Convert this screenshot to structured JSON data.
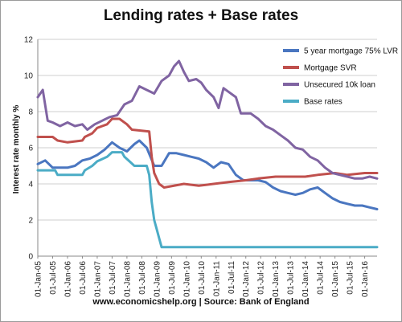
{
  "chart_data": {
    "type": "line",
    "title": "Lending rates + Base rates",
    "source": "www.economicshelp.org | Source: Bank of England",
    "ylabel": "Interest rate monthly %",
    "xlabel": "",
    "ylim": [
      0,
      12
    ],
    "yticks": [
      "0",
      "2",
      "4",
      "6",
      "8",
      "10",
      "12"
    ],
    "xlim": [
      "2005-01",
      "2016-06"
    ],
    "xticks": [
      "01-Jan-05",
      "01-Jul-05",
      "01-Jan-06",
      "01-Jul-06",
      "01-Jan-07",
      "01-Jul-07",
      "01-Jan-08",
      "01-Jul-08",
      "01-Jan-09",
      "01-Jul-09",
      "01-Jan-10",
      "01-Jul-10",
      "01-Jan-11",
      "01-Jul-11",
      "01-Jan-12",
      "01-Jul-12",
      "01-Jan-13",
      "01-Jul-13",
      "01-Jan-14",
      "01-Jul-14",
      "01-Jan-15",
      "01-Jul-15",
      "01-Jan-16"
    ],
    "grid": "horizontal",
    "legend": "top-right",
    "series": [
      {
        "name": "5 year mortgage 75% LVR",
        "color": "#4a76c0",
        "points": [
          [
            "2005-01",
            5.1
          ],
          [
            "2005-04",
            5.3
          ],
          [
            "2005-07",
            4.9
          ],
          [
            "2005-10",
            4.9
          ],
          [
            "2006-01",
            4.9
          ],
          [
            "2006-04",
            5.0
          ],
          [
            "2006-07",
            5.3
          ],
          [
            "2006-10",
            5.4
          ],
          [
            "2007-01",
            5.6
          ],
          [
            "2007-04",
            5.9
          ],
          [
            "2007-07",
            6.3
          ],
          [
            "2007-10",
            6.0
          ],
          [
            "2008-01",
            5.8
          ],
          [
            "2008-04",
            6.2
          ],
          [
            "2008-06",
            6.4
          ],
          [
            "2008-09",
            6.0
          ],
          [
            "2008-12",
            5.0
          ],
          [
            "2009-03",
            5.0
          ],
          [
            "2009-06",
            5.7
          ],
          [
            "2009-09",
            5.7
          ],
          [
            "2009-12",
            5.6
          ],
          [
            "2010-03",
            5.5
          ],
          [
            "2010-06",
            5.4
          ],
          [
            "2010-09",
            5.2
          ],
          [
            "2010-12",
            4.9
          ],
          [
            "2011-03",
            5.2
          ],
          [
            "2011-06",
            5.1
          ],
          [
            "2011-09",
            4.5
          ],
          [
            "2011-12",
            4.2
          ],
          [
            "2012-03",
            4.2
          ],
          [
            "2012-06",
            4.2
          ],
          [
            "2012-09",
            4.1
          ],
          [
            "2012-12",
            3.8
          ],
          [
            "2013-03",
            3.6
          ],
          [
            "2013-06",
            3.5
          ],
          [
            "2013-09",
            3.4
          ],
          [
            "2013-12",
            3.5
          ],
          [
            "2014-03",
            3.7
          ],
          [
            "2014-06",
            3.8
          ],
          [
            "2014-09",
            3.5
          ],
          [
            "2014-12",
            3.2
          ],
          [
            "2015-03",
            3.0
          ],
          [
            "2015-06",
            2.9
          ],
          [
            "2015-09",
            2.8
          ],
          [
            "2015-12",
            2.8
          ],
          [
            "2016-03",
            2.7
          ],
          [
            "2016-06",
            2.6
          ]
        ]
      },
      {
        "name": "Mortgage SVR",
        "color": "#c0504d",
        "points": [
          [
            "2005-01",
            6.6
          ],
          [
            "2005-07",
            6.6
          ],
          [
            "2005-09",
            6.4
          ],
          [
            "2006-01",
            6.3
          ],
          [
            "2006-07",
            6.4
          ],
          [
            "2006-08",
            6.6
          ],
          [
            "2006-11",
            6.8
          ],
          [
            "2007-01",
            7.1
          ],
          [
            "2007-05",
            7.3
          ],
          [
            "2007-07",
            7.6
          ],
          [
            "2007-10",
            7.6
          ],
          [
            "2008-01",
            7.3
          ],
          [
            "2008-03",
            7.0
          ],
          [
            "2008-10",
            6.9
          ],
          [
            "2008-11",
            5.5
          ],
          [
            "2008-12",
            4.6
          ],
          [
            "2009-02",
            4.0
          ],
          [
            "2009-04",
            3.8
          ],
          [
            "2009-12",
            4.0
          ],
          [
            "2010-06",
            3.9
          ],
          [
            "2010-12",
            4.0
          ],
          [
            "2011-06",
            4.1
          ],
          [
            "2012-01",
            4.2
          ],
          [
            "2012-06",
            4.3
          ],
          [
            "2013-01",
            4.4
          ],
          [
            "2013-06",
            4.4
          ],
          [
            "2014-01",
            4.4
          ],
          [
            "2014-06",
            4.5
          ],
          [
            "2015-01",
            4.6
          ],
          [
            "2015-06",
            4.5
          ],
          [
            "2016-01",
            4.6
          ],
          [
            "2016-06",
            4.6
          ]
        ]
      },
      {
        "name": "Unsecured 10k loan",
        "color": "#8064a2",
        "points": [
          [
            "2005-01",
            8.8
          ],
          [
            "2005-03",
            9.2
          ],
          [
            "2005-05",
            7.5
          ],
          [
            "2005-07",
            7.4
          ],
          [
            "2005-10",
            7.2
          ],
          [
            "2006-01",
            7.4
          ],
          [
            "2006-04",
            7.2
          ],
          [
            "2006-07",
            7.3
          ],
          [
            "2006-09",
            7.0
          ],
          [
            "2006-12",
            7.3
          ],
          [
            "2007-03",
            7.5
          ],
          [
            "2007-06",
            7.7
          ],
          [
            "2007-09",
            7.8
          ],
          [
            "2007-12",
            8.4
          ],
          [
            "2008-03",
            8.6
          ],
          [
            "2008-06",
            9.4
          ],
          [
            "2008-09",
            9.2
          ],
          [
            "2008-12",
            9.0
          ],
          [
            "2009-03",
            9.7
          ],
          [
            "2009-06",
            10.0
          ],
          [
            "2009-08",
            10.5
          ],
          [
            "2009-10",
            10.8
          ],
          [
            "2009-12",
            10.2
          ],
          [
            "2010-02",
            9.7
          ],
          [
            "2010-05",
            9.8
          ],
          [
            "2010-07",
            9.6
          ],
          [
            "2010-09",
            9.2
          ],
          [
            "2010-12",
            8.8
          ],
          [
            "2011-02",
            8.2
          ],
          [
            "2011-04",
            9.3
          ],
          [
            "2011-06",
            9.1
          ],
          [
            "2011-09",
            8.8
          ],
          [
            "2011-11",
            7.9
          ],
          [
            "2012-03",
            7.9
          ],
          [
            "2012-06",
            7.6
          ],
          [
            "2012-09",
            7.2
          ],
          [
            "2012-12",
            7.0
          ],
          [
            "2013-03",
            6.7
          ],
          [
            "2013-06",
            6.4
          ],
          [
            "2013-09",
            6.0
          ],
          [
            "2013-12",
            5.9
          ],
          [
            "2014-03",
            5.5
          ],
          [
            "2014-06",
            5.3
          ],
          [
            "2014-09",
            4.9
          ],
          [
            "2014-12",
            4.6
          ],
          [
            "2015-03",
            4.5
          ],
          [
            "2015-06",
            4.4
          ],
          [
            "2015-09",
            4.3
          ],
          [
            "2015-12",
            4.3
          ],
          [
            "2016-03",
            4.4
          ],
          [
            "2016-06",
            4.3
          ]
        ]
      },
      {
        "name": "Base rates",
        "color": "#4bacc6",
        "points": [
          [
            "2005-01",
            4.75
          ],
          [
            "2005-08",
            4.75
          ],
          [
            "2005-09",
            4.5
          ],
          [
            "2006-07",
            4.5
          ],
          [
            "2006-08",
            4.75
          ],
          [
            "2006-11",
            5.0
          ],
          [
            "2007-01",
            5.25
          ],
          [
            "2007-05",
            5.5
          ],
          [
            "2007-07",
            5.75
          ],
          [
            "2007-11",
            5.75
          ],
          [
            "2007-12",
            5.5
          ],
          [
            "2008-02",
            5.25
          ],
          [
            "2008-04",
            5.0
          ],
          [
            "2008-09",
            5.0
          ],
          [
            "2008-10",
            4.5
          ],
          [
            "2008-11",
            3.0
          ],
          [
            "2008-12",
            2.0
          ],
          [
            "2009-01",
            1.5
          ],
          [
            "2009-02",
            1.0
          ],
          [
            "2009-03",
            0.5
          ],
          [
            "2016-06",
            0.5
          ]
        ]
      }
    ]
  }
}
